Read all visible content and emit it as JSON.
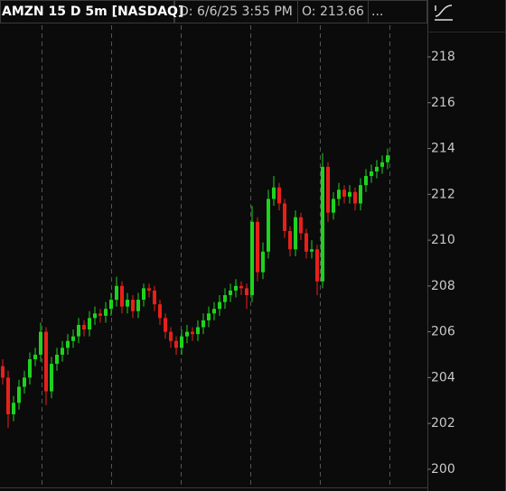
{
  "chart_data": {
    "type": "candlestick",
    "title": "AMZN 15 D 5m [NASDAQ]",
    "header_fields": [
      "D: 6/6/25 3:55 PM",
      "O: 213.66",
      "..."
    ],
    "up_color": "#1ed31e",
    "down_color": "#e8201a",
    "ylim": [
      199.05,
      219.38
    ],
    "yticks": [
      200,
      202,
      204,
      206,
      208,
      210,
      212,
      214,
      216,
      218
    ],
    "open": [
      204.5,
      204.0,
      202.4,
      202.9,
      203.6,
      204.0,
      204.8,
      205.0,
      206.0,
      203.4,
      204.6,
      205.0,
      205.3,
      205.6,
      205.8,
      206.3,
      206.1,
      206.6,
      206.8,
      206.7,
      207.0,
      207.4,
      208.0,
      207.1,
      207.4,
      206.9,
      207.4,
      207.9,
      207.8,
      207.2,
      206.6,
      206.0,
      205.6,
      205.3,
      205.8,
      206.0,
      205.9,
      206.2,
      206.5,
      206.8,
      207.0,
      207.3,
      207.6,
      207.8,
      208.0,
      207.9,
      207.6,
      210.8,
      208.6,
      209.5,
      211.8,
      212.3,
      211.6,
      210.4,
      209.6,
      211.0,
      210.3,
      209.5,
      209.6,
      208.2,
      213.2,
      211.2,
      211.8,
      212.2,
      211.9,
      212.1,
      211.6,
      212.4,
      212.8,
      213.0,
      213.2,
      213.4
    ],
    "high": [
      204.8,
      204.3,
      203.2,
      203.9,
      204.3,
      205.1,
      205.3,
      206.4,
      206.2,
      204.9,
      205.3,
      205.6,
      205.9,
      206.1,
      206.6,
      206.5,
      206.9,
      207.1,
      207.0,
      207.3,
      207.7,
      208.4,
      208.2,
      207.7,
      207.6,
      207.7,
      208.1,
      208.1,
      208.0,
      207.4,
      206.8,
      206.2,
      205.8,
      206.1,
      206.3,
      206.2,
      206.5,
      206.8,
      207.1,
      207.3,
      207.6,
      207.9,
      208.1,
      208.3,
      208.2,
      208.1,
      211.5,
      211.0,
      209.9,
      212.2,
      212.8,
      212.5,
      211.8,
      210.6,
      211.3,
      211.2,
      210.5,
      210.0,
      209.8,
      213.8,
      213.4,
      212.1,
      212.5,
      212.4,
      212.4,
      212.3,
      212.7,
      213.1,
      213.3,
      213.5,
      213.7,
      214.0
    ],
    "low": [
      203.7,
      201.8,
      202.1,
      202.6,
      203.3,
      203.7,
      204.5,
      204.7,
      202.8,
      203.1,
      204.3,
      204.7,
      205.0,
      205.3,
      205.5,
      205.8,
      205.8,
      206.3,
      206.4,
      206.4,
      206.7,
      207.1,
      206.8,
      206.8,
      206.6,
      206.6,
      207.1,
      207.5,
      206.9,
      206.3,
      205.7,
      205.3,
      205.0,
      205.0,
      205.5,
      205.6,
      205.6,
      205.9,
      206.2,
      206.5,
      206.7,
      207.0,
      207.3,
      207.5,
      207.6,
      207.0,
      207.3,
      208.2,
      208.3,
      209.2,
      211.5,
      211.3,
      210.1,
      209.3,
      209.3,
      210.0,
      209.2,
      209.2,
      207.6,
      207.9,
      210.8,
      210.9,
      211.5,
      211.6,
      211.6,
      211.3,
      211.3,
      212.1,
      212.5,
      212.7,
      212.9,
      213.1
    ],
    "close": [
      204.0,
      202.4,
      202.9,
      203.6,
      204.0,
      204.8,
      205.0,
      206.0,
      203.4,
      204.6,
      205.0,
      205.3,
      205.6,
      205.8,
      206.3,
      206.1,
      206.6,
      206.8,
      206.7,
      207.0,
      207.4,
      208.0,
      207.1,
      207.4,
      206.9,
      207.4,
      207.9,
      207.8,
      207.2,
      206.6,
      206.0,
      205.6,
      205.3,
      205.8,
      206.0,
      205.9,
      206.2,
      206.5,
      206.8,
      207.0,
      207.3,
      207.6,
      207.8,
      208.0,
      207.9,
      207.6,
      210.8,
      208.6,
      209.5,
      211.8,
      212.3,
      211.6,
      210.4,
      209.6,
      211.0,
      210.3,
      209.5,
      209.6,
      208.2,
      213.2,
      211.2,
      211.8,
      212.2,
      211.9,
      212.1,
      211.6,
      212.4,
      212.8,
      213.0,
      213.2,
      213.4,
      213.7
    ]
  }
}
